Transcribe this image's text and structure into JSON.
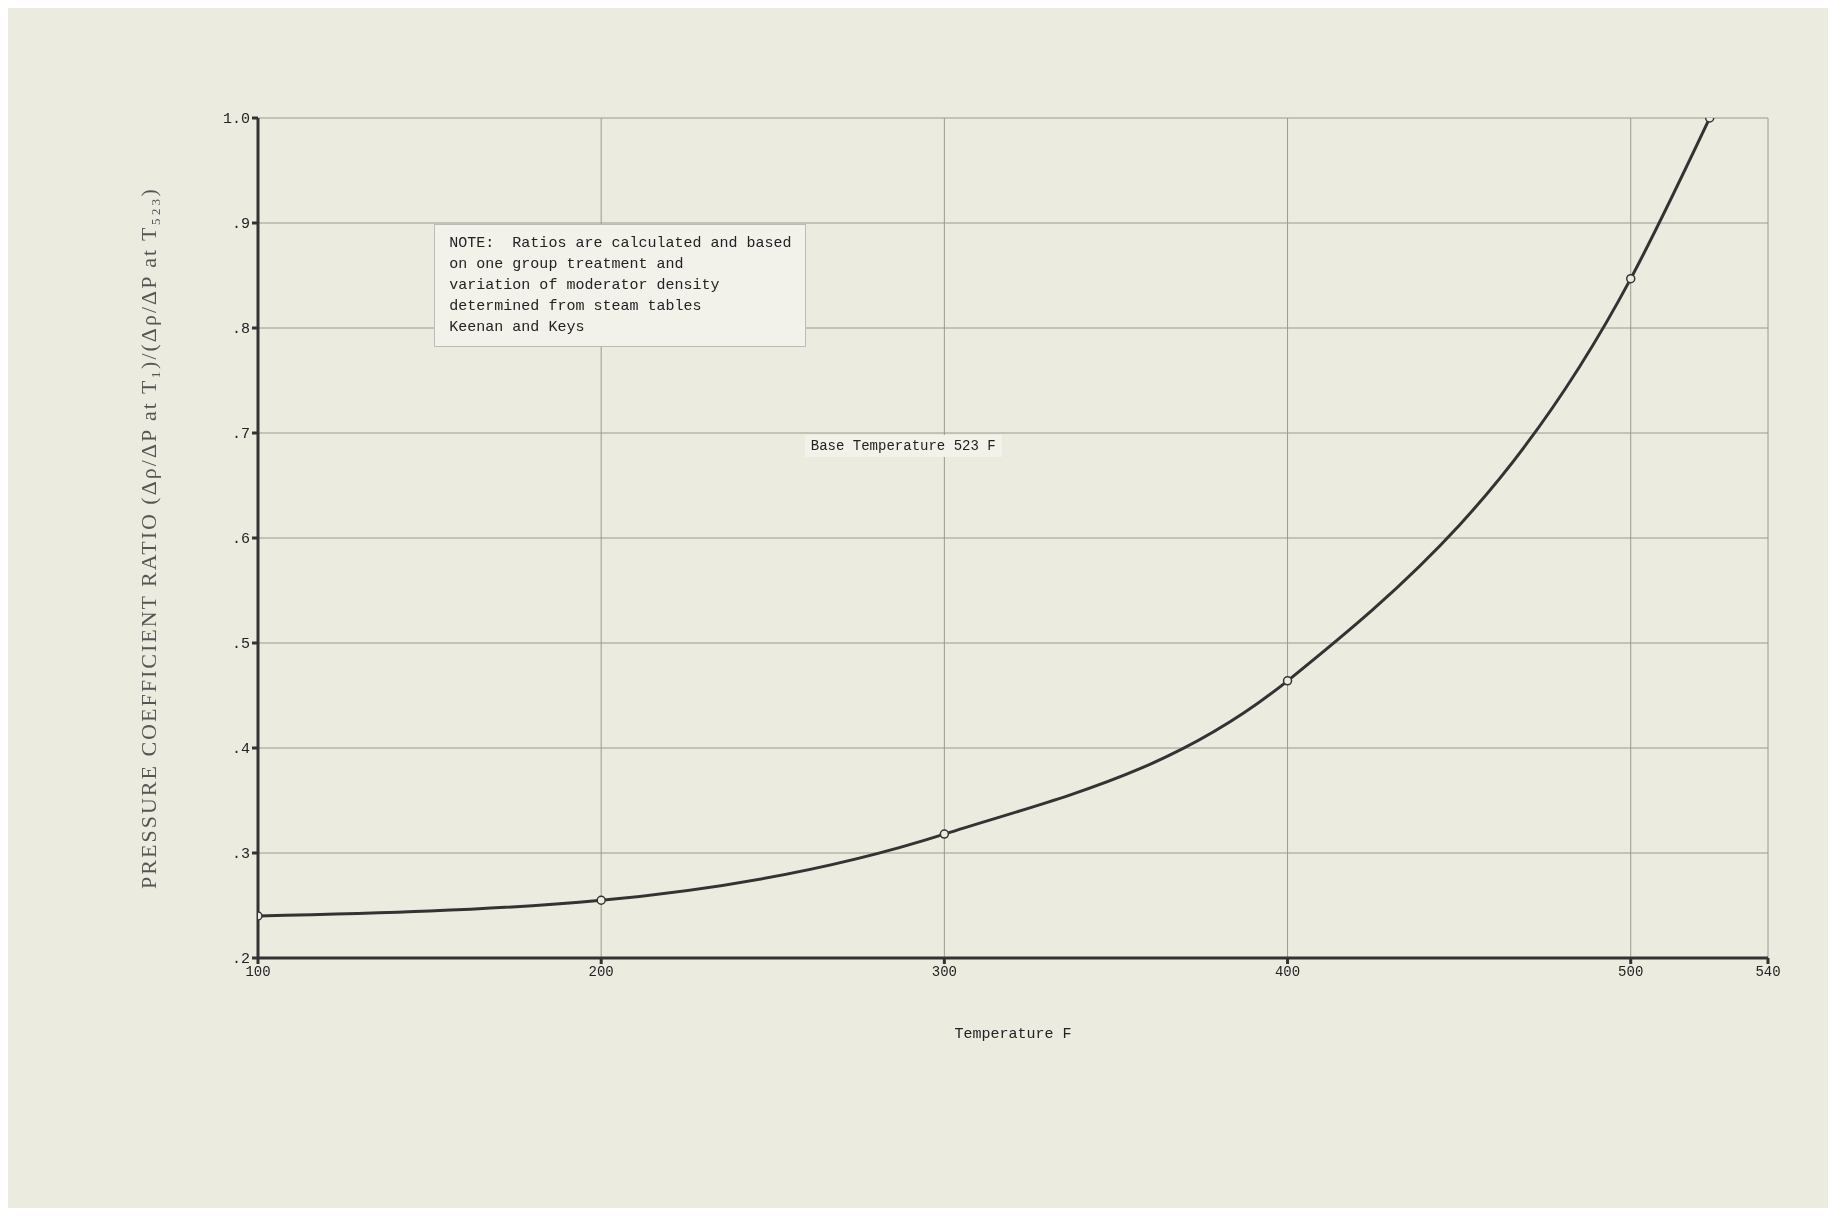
{
  "chart_data": {
    "type": "line",
    "xlabel": "Temperature F",
    "ylabel": "PRESSURE COEFFICIENT RATIO (Δρ/ΔP at T₁)/(Δρ/ΔP at T₅₂₃)",
    "x": [
      100,
      200,
      300,
      400,
      500,
      523
    ],
    "series": [
      {
        "color": "#333333",
        "values": [
          0.24,
          0.255,
          0.318,
          0.464,
          0.847,
          1.0
        ]
      }
    ],
    "xlim": [
      100,
      540
    ],
    "xticks": [
      100,
      200,
      300,
      400,
      500,
      540
    ],
    "ylim": [
      0.2,
      1.0
    ],
    "yticks": [
      {
        "value": 0.2,
        "label": ".2"
      },
      {
        "value": 0.3,
        "label": ".3"
      },
      {
        "value": 0.4,
        "label": ".4"
      },
      {
        "value": 0.5,
        "label": ".5"
      },
      {
        "value": 0.6,
        "label": ".6"
      },
      {
        "value": 0.7,
        "label": ".7"
      },
      {
        "value": 0.8,
        "label": ".8"
      },
      {
        "value": 0.9,
        "label": ".9"
      },
      {
        "value": 1.0,
        "label": "1.0"
      }
    ],
    "grid": true,
    "marker": "circle",
    "line_style": "solid",
    "annotations": [
      "NOTE:  Ratios are calculated and based\non one group treatment and\nvariation of moderator density\ndetermined from steam tables\nKeenan and Keys",
      "Base Temperature 523 F"
    ]
  }
}
